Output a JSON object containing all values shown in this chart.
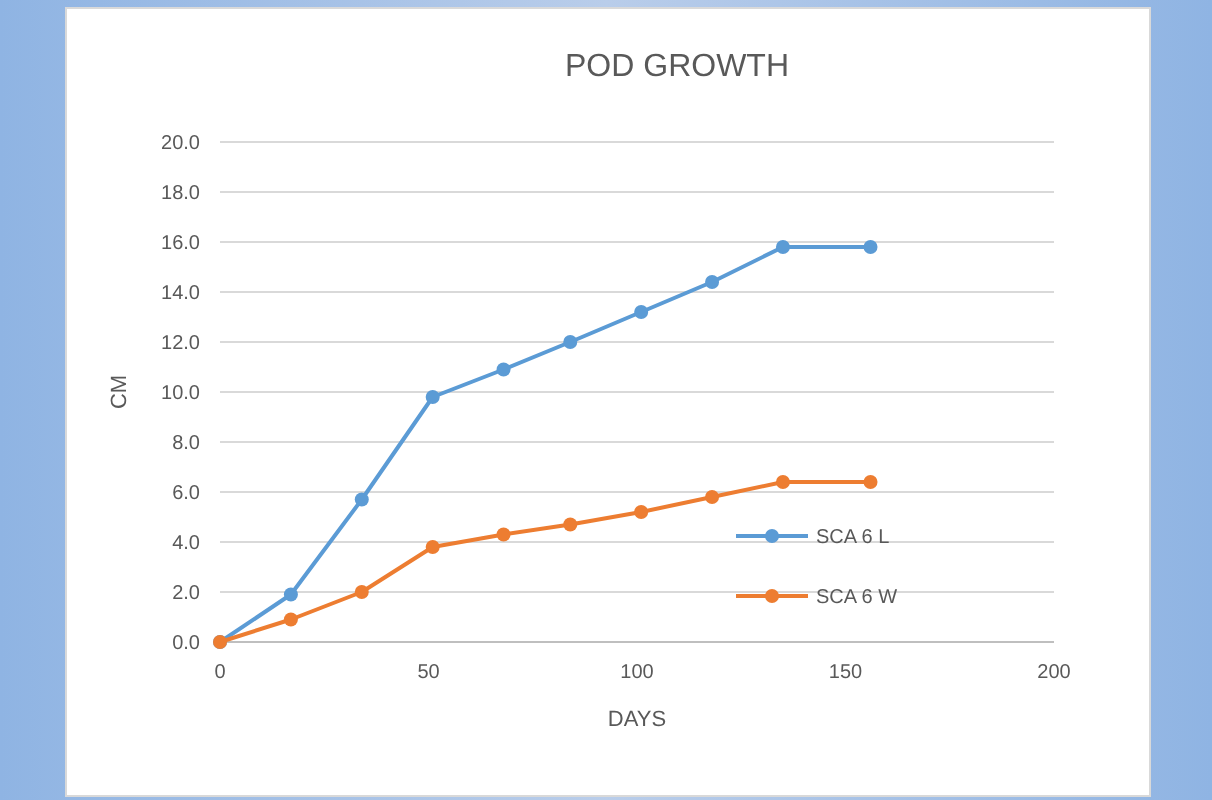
{
  "chart_data": {
    "type": "line",
    "title": "POD GROWTH",
    "xlabel": "DAYS",
    "ylabel": "CM",
    "x": [
      0,
      17,
      34,
      51,
      68,
      84,
      101,
      118,
      135,
      156
    ],
    "series": [
      {
        "name": "SCA 6 L",
        "color": "#5b9bd5",
        "values": [
          0,
          1.9,
          5.7,
          9.8,
          10.9,
          12.0,
          13.2,
          14.4,
          15.8,
          15.8
        ]
      },
      {
        "name": "SCA 6 W",
        "color": "#ed7d31",
        "values": [
          0,
          0.9,
          2.0,
          3.8,
          4.3,
          4.7,
          5.2,
          5.8,
          6.4,
          6.4
        ]
      }
    ],
    "xlim": [
      0,
      200
    ],
    "xticks": [
      0,
      50,
      100,
      150,
      200
    ],
    "ylim": [
      0,
      20
    ],
    "yticks": [
      {
        "value": 0,
        "label": "0.0"
      },
      {
        "value": 2,
        "label": "2.0"
      },
      {
        "value": 4,
        "label": "4.0"
      },
      {
        "value": 6,
        "label": "6.0"
      },
      {
        "value": 8,
        "label": "8.0"
      },
      {
        "value": 10,
        "label": "10.0"
      },
      {
        "value": 12,
        "label": "12.0"
      },
      {
        "value": 14,
        "label": "14.0"
      },
      {
        "value": 16,
        "label": "16.0"
      },
      {
        "value": 18,
        "label": "18.0"
      },
      {
        "value": 20,
        "label": "20.0"
      }
    ],
    "grid": "y",
    "legend": "right",
    "marker": "circle",
    "line_style": "solid"
  }
}
